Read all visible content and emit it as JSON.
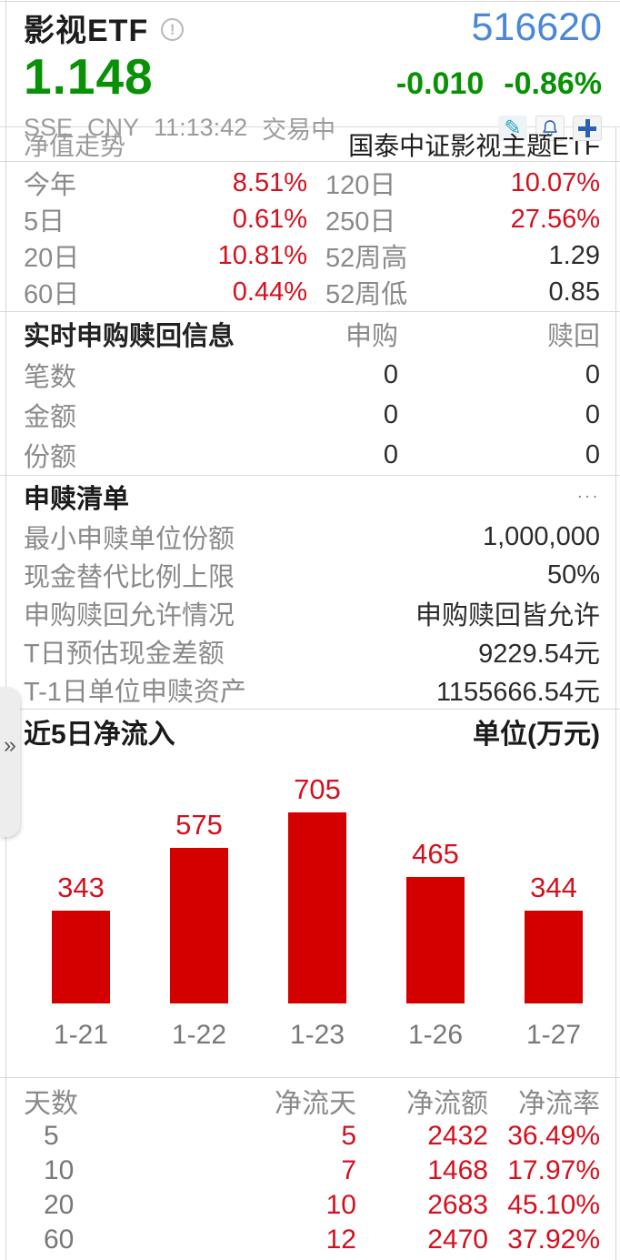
{
  "header": {
    "title": "影视ETF",
    "code": "516620",
    "price": "1.148",
    "change": "-0.010",
    "change_pct": "-0.86%",
    "exchange": "SSE",
    "currency": "CNY",
    "time": "11:13:42",
    "status": "交易中"
  },
  "nav": {
    "title": "净值走势",
    "fund_name": "国泰中证影视主题ETF"
  },
  "performance": {
    "rows": [
      {
        "l1": "今年",
        "v1": "8.51%",
        "l2": "120日",
        "v2": "10.07%"
      },
      {
        "l1": "5日",
        "v1": "0.61%",
        "l2": "250日",
        "v2": "27.56%"
      },
      {
        "l1": "20日",
        "v1": "10.81%",
        "l2": "52周高",
        "v2": "1.29"
      },
      {
        "l1": "60日",
        "v1": "0.44%",
        "l2": "52周低",
        "v2": "0.85"
      }
    ]
  },
  "realtime": {
    "title": "实时申购赎回信息",
    "col_subscribe": "申购",
    "col_redeem": "赎回",
    "rows": [
      {
        "label": "笔数",
        "subscribe": "0",
        "redeem": "0"
      },
      {
        "label": "金额",
        "subscribe": "0",
        "redeem": "0"
      },
      {
        "label": "份额",
        "subscribe": "0",
        "redeem": "0"
      }
    ]
  },
  "purchase_list": {
    "title": "申赎清单",
    "more": "...",
    "rows": [
      {
        "label": "最小申赎单位份额",
        "value": "1,000,000"
      },
      {
        "label": "现金替代比例上限",
        "value": "50%"
      },
      {
        "label": "申购赎回允许情况",
        "value": "申购赎回皆允许"
      },
      {
        "label": "T日预估现金差额",
        "value": "9229.54元"
      },
      {
        "label": "T-1日单位申赎资产",
        "value": "1155666.54元"
      }
    ]
  },
  "chart_data": {
    "type": "bar",
    "title": "近5日净流入",
    "unit_label": "单位(万元)",
    "categories": [
      "1-21",
      "1-22",
      "1-23",
      "1-26",
      "1-27"
    ],
    "values": [
      343,
      575,
      705,
      465,
      344
    ],
    "ylim": [
      0,
      750
    ],
    "bar_color": "#d40000",
    "value_label_color": "#d5101e",
    "grid": false,
    "legend": false
  },
  "flow_table": {
    "headers": [
      "天数",
      "净流天",
      "净流额",
      "净流率"
    ],
    "rows": [
      [
        "5",
        "5",
        "2432",
        "36.49%"
      ],
      [
        "10",
        "7",
        "1468",
        "17.97%"
      ],
      [
        "20",
        "10",
        "2683",
        "45.10%"
      ],
      [
        "60",
        "12",
        "2470",
        "37.92%"
      ]
    ]
  },
  "side_tab": {
    "chevron": "»"
  },
  "colors": {
    "up_red_text": "#d5101e",
    "bar_red": "#d40000",
    "down_green": "#089104",
    "code_blue": "#4a87d8",
    "icon_blue": "#2e61ad",
    "icon_teal": "#29a3c6",
    "label_gray": "#8a8a8a"
  }
}
